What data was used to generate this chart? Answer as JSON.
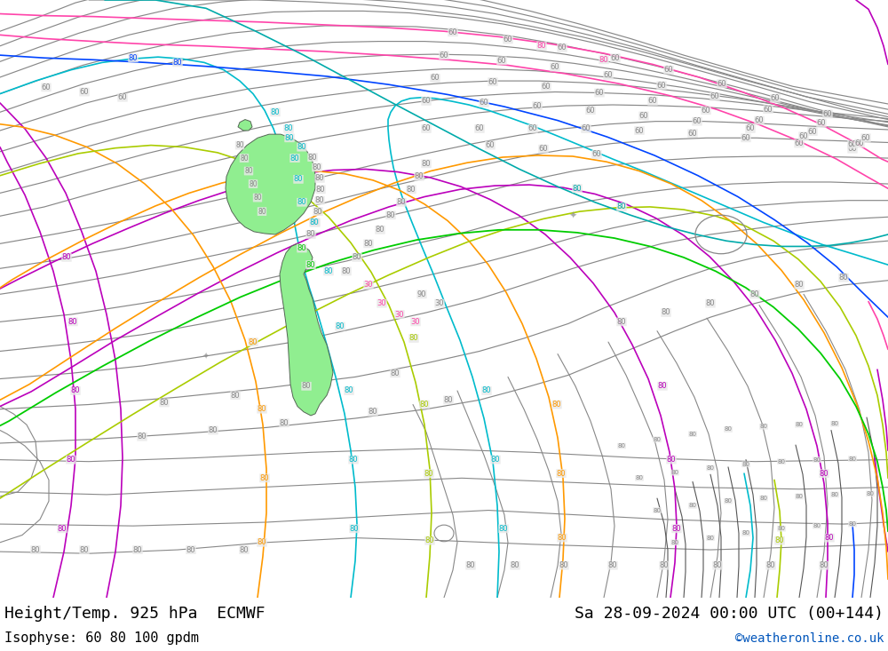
{
  "title_left": "Height/Temp. 925 hPa  ECMWF",
  "title_right": "Sa 28-09-2024 00:00 UTC (00+144)",
  "subtitle_left": "Isophyse: 60 80 100 gpdm",
  "subtitle_right": "©weatheronline.co.uk",
  "bg_color": "#e8e8e8",
  "footer_bg": "#ffffff",
  "nz_fill_color": "#90ee90",
  "colors": {
    "gray": "#888888",
    "dark_gray": "#444444",
    "cyan": "#00bbcc",
    "magenta": "#bb00bb",
    "orange": "#ff9900",
    "yellow_green": "#aacc00",
    "green": "#00aa00",
    "pink": "#ff44aa",
    "blue": "#0044ff",
    "teal": "#00aaaa",
    "purple": "#8800cc",
    "light_gray": "#aaaaaa"
  }
}
